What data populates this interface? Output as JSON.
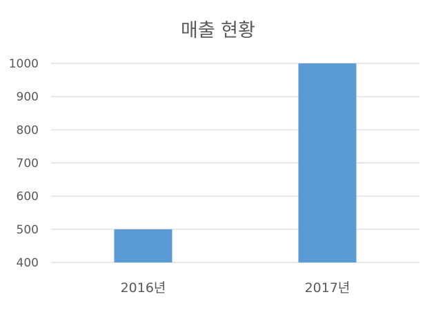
{
  "chart_data": {
    "type": "bar",
    "title": "매출 현황",
    "categories": [
      "2016년",
      "2017년"
    ],
    "values": [
      500,
      1000
    ],
    "ylim": [
      400,
      1000
    ],
    "yticks": [
      400,
      500,
      600,
      700,
      800,
      900,
      1000
    ],
    "xlabel": "",
    "ylabel": "",
    "grid": true,
    "legend": "none",
    "bar_color": "#5b9bd5",
    "grid_color": "#d9d9d9",
    "text_color": "#595959"
  }
}
